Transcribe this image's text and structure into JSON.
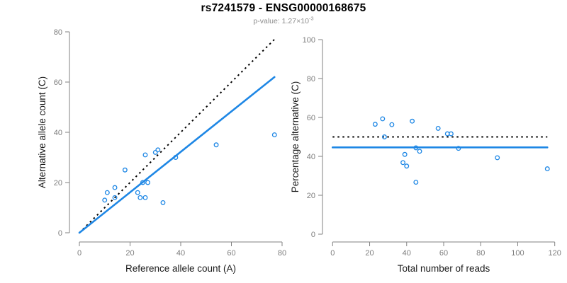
{
  "header": {
    "title": "rs7241579 - ENSG00000168675",
    "subtitle_prefix": "p-value: 1.27×10",
    "subtitle_exponent": "-3"
  },
  "colors": {
    "accent_blue": "#1E87E5",
    "dotted_black": "#000000",
    "axis_gray": "#828282",
    "tick_label_gray": "#7d7d7d",
    "axis_title_color": "#1a1a1a"
  },
  "chart_data": [
    {
      "type": "scatter",
      "name": "allele-counts",
      "xlabel": "Reference allele count (A)",
      "ylabel": "Alternative allele count (C)",
      "xlim": [
        0,
        80
      ],
      "ylim": [
        0,
        80
      ],
      "xticks": [
        0,
        20,
        40,
        60,
        80
      ],
      "yticks": [
        0,
        20,
        40,
        60,
        80
      ],
      "grid": false,
      "legend": "none",
      "marker": "open-circle",
      "points": [
        [
          10,
          13
        ],
        [
          11,
          16
        ],
        [
          14,
          14
        ],
        [
          14,
          18
        ],
        [
          18,
          25
        ],
        [
          23,
          16
        ],
        [
          24,
          14
        ],
        [
          25,
          20
        ],
        [
          26,
          14
        ],
        [
          26,
          31
        ],
        [
          27,
          20
        ],
        [
          30,
          32
        ],
        [
          31,
          33
        ],
        [
          33,
          12
        ],
        [
          38,
          30
        ],
        [
          54,
          35
        ],
        [
          77,
          39
        ]
      ],
      "lines": [
        {
          "name": "identity-line",
          "style": "dotted",
          "color": "#000000",
          "x1": 0,
          "y1": 0,
          "x2": 77,
          "y2": 77
        },
        {
          "name": "fit-line",
          "style": "solid",
          "color": "#1E87E5",
          "x1": 0,
          "y1": 0,
          "x2": 77,
          "y2": 62
        }
      ]
    },
    {
      "type": "scatter",
      "name": "percentage-vs-reads",
      "xlabel": "Total number of reads",
      "ylabel": "Percentage alternative (C)",
      "xlim": [
        0,
        120
      ],
      "ylim": [
        0,
        100
      ],
      "xticks": [
        0,
        20,
        40,
        60,
        80,
        100,
        120
      ],
      "yticks": [
        0,
        20,
        40,
        60,
        80,
        100
      ],
      "grid": false,
      "legend": "none",
      "marker": "open-circle",
      "points": [
        [
          23,
          56.5
        ],
        [
          27,
          59.3
        ],
        [
          28,
          50.0
        ],
        [
          32,
          56.3
        ],
        [
          43,
          58.1
        ],
        [
          39,
          41.0
        ],
        [
          38,
          36.8
        ],
        [
          45,
          44.4
        ],
        [
          40,
          35.0
        ],
        [
          57,
          54.4
        ],
        [
          47,
          42.6
        ],
        [
          62,
          51.6
        ],
        [
          64,
          51.6
        ],
        [
          45,
          26.7
        ],
        [
          68,
          44.1
        ],
        [
          89,
          39.3
        ],
        [
          116,
          33.6
        ]
      ],
      "lines": [
        {
          "name": "fifty-percent-line",
          "style": "dotted",
          "color": "#000000",
          "x1": 0,
          "y1": 50,
          "x2": 116,
          "y2": 50
        },
        {
          "name": "mean-percentage-line",
          "style": "solid",
          "color": "#1E87E5",
          "x1": 0,
          "y1": 44.6,
          "x2": 116,
          "y2": 44.6
        }
      ]
    }
  ]
}
